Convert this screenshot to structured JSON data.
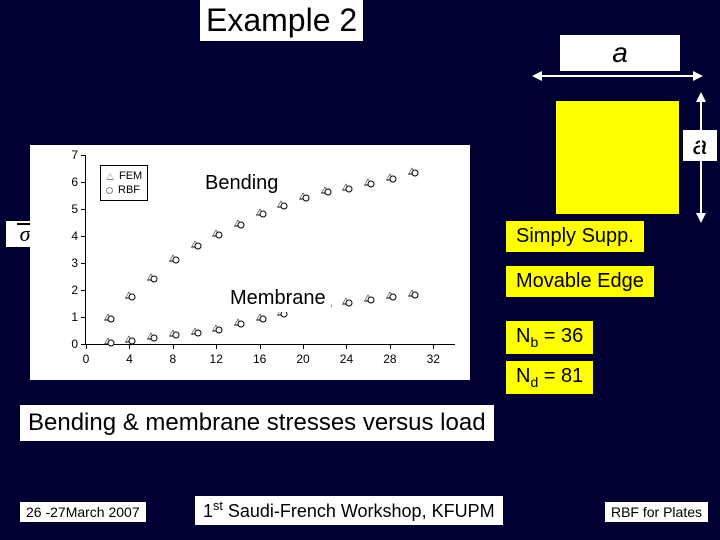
{
  "title": "Example 2",
  "dim_labels": {
    "a_top": "a",
    "a_right": "a"
  },
  "chart": {
    "type": "scatter",
    "xlim": [
      0,
      34
    ],
    "ylim": [
      0,
      7
    ],
    "xticks": [
      0,
      4,
      8,
      12,
      16,
      20,
      24,
      28,
      32
    ],
    "yticks": [
      0,
      1,
      2,
      3,
      4,
      5,
      6,
      7
    ],
    "legend": {
      "fem": "FEM",
      "rbf": "RBF"
    },
    "annotations": {
      "bending": "Bending",
      "membrane": "Membrane"
    },
    "sigma_label": "σ",
    "series_bending": [
      [
        2,
        1.0
      ],
      [
        4,
        1.8
      ],
      [
        6,
        2.5
      ],
      [
        8,
        3.2
      ],
      [
        10,
        3.7
      ],
      [
        12,
        4.1
      ],
      [
        14,
        4.5
      ],
      [
        16,
        4.9
      ],
      [
        18,
        5.2
      ],
      [
        20,
        5.5
      ],
      [
        22,
        5.7
      ],
      [
        24,
        5.8
      ],
      [
        26,
        6.0
      ],
      [
        28,
        6.2
      ],
      [
        30,
        6.4
      ]
    ],
    "series_membrane": [
      [
        2,
        0.1
      ],
      [
        4,
        0.2
      ],
      [
        6,
        0.3
      ],
      [
        8,
        0.4
      ],
      [
        10,
        0.5
      ],
      [
        12,
        0.6
      ],
      [
        14,
        0.8
      ],
      [
        16,
        1.0
      ],
      [
        18,
        1.2
      ],
      [
        20,
        1.4
      ],
      [
        22,
        1.5
      ],
      [
        24,
        1.6
      ],
      [
        26,
        1.7
      ],
      [
        28,
        1.8
      ],
      [
        30,
        1.9
      ]
    ],
    "bg": "#ffffff",
    "axis_color": "#000000",
    "marker_color": "#000000"
  },
  "side_boxes": {
    "supp": "Simply Supp.",
    "edge": "Movable Edge",
    "nb_prefix": "N",
    "nb_sub": "b",
    "nb_eq": " = 36",
    "nd_prefix": "N",
    "nd_sub": "d",
    "nd_eq": " = 81"
  },
  "caption": "Bending & membrane stresses   versus load",
  "footer": {
    "date": "26 -27March 2007",
    "center_pre": "1",
    "center_sup": "st",
    "center_post": " Saudi-French Workshop, KFUPM",
    "right": "RBF for Plates"
  },
  "colors": {
    "slide_bg": "#000033",
    "highlight": "#ffff00",
    "text_bg": "#ffffff"
  }
}
